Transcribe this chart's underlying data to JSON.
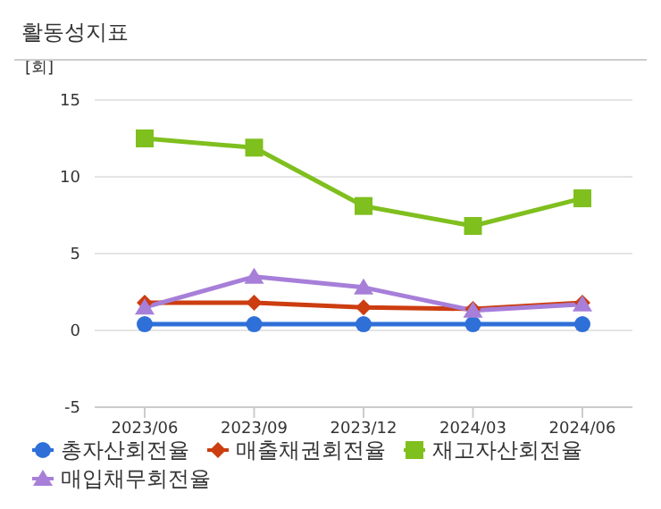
{
  "chart_data": {
    "type": "line",
    "title": "활동성지표",
    "ylabel": "[회]",
    "categories": [
      "2023/06",
      "2023/09",
      "2023/12",
      "2024/03",
      "2024/06"
    ],
    "series": [
      {
        "name": "총자산회전율",
        "color": "#2f6fd8",
        "marker": "circle",
        "values": [
          0.4,
          0.4,
          0.4,
          0.4,
          0.4
        ]
      },
      {
        "name": "매출채권회전율",
        "color": "#cc3d10",
        "marker": "diamond",
        "values": [
          1.8,
          1.8,
          1.5,
          1.4,
          1.8
        ]
      },
      {
        "name": "재고자산회전율",
        "color": "#7fbf1e",
        "marker": "square",
        "values": [
          12.5,
          11.9,
          8.1,
          6.8,
          8.6
        ]
      },
      {
        "name": "매입채무회전율",
        "color": "#a77fd9",
        "marker": "triangle",
        "values": [
          1.5,
          3.5,
          2.8,
          1.3,
          1.7
        ]
      }
    ],
    "ylim": [
      -5,
      15
    ],
    "yticks": [
      -5,
      0,
      5,
      10,
      15
    ],
    "grid": "y",
    "legend": "bottom"
  }
}
